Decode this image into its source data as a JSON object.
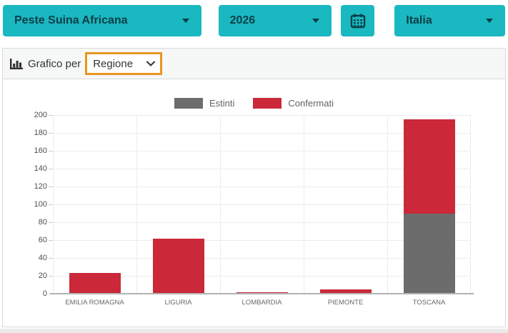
{
  "toolbar": {
    "disease_select": {
      "value": "Peste Suina Africana"
    },
    "year_select": {
      "value": "2026"
    },
    "territory_select": {
      "value": "Italia"
    },
    "calendar_icon": "calendar-icon"
  },
  "panel": {
    "chart_by_label": "Grafico per",
    "chart_by_select": {
      "value": "Regione"
    },
    "chart_icon": "bar-chart-icon"
  },
  "colors": {
    "teal": "#1ab8c0",
    "teal_text": "#0d3d46",
    "highlight_orange": "#e8961e",
    "panel_border": "#d9d9d9",
    "grid_line": "#ececec",
    "axis_line": "#b3b3b3",
    "text_dark": "#333333",
    "page_strip": "#e9e9e9",
    "confirmed_red": "#cb2839",
    "extinct_gray": "#6c6c6c"
  },
  "chart_data": {
    "type": "bar",
    "stacked": true,
    "categories": [
      "EMILIA ROMAGNA",
      "LIGURIA",
      "LOMBARDIA",
      "PIEMONTE",
      "TOSCANA"
    ],
    "series": [
      {
        "name": "Estinti",
        "color": "#6c6c6c",
        "values": [
          0,
          0,
          0,
          0,
          90
        ]
      },
      {
        "name": "Confermati",
        "color": "#cb2839",
        "values": [
          23,
          62,
          2,
          5,
          105
        ]
      }
    ],
    "title": "",
    "xlabel": "",
    "ylabel": "",
    "ylim": [
      0,
      200
    ],
    "ytick_step": 20,
    "legend_position": "top",
    "grid": true
  }
}
